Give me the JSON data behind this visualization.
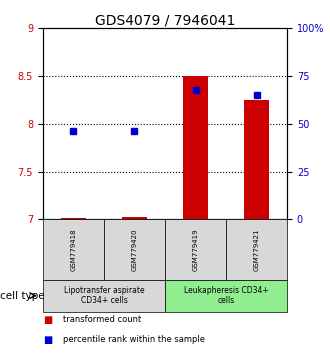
{
  "title": "GDS4079 / 7946041",
  "samples": [
    "GSM779418",
    "GSM779420",
    "GSM779419",
    "GSM779421"
  ],
  "red_values": [
    7.02,
    7.03,
    8.5,
    8.25
  ],
  "blue_values": [
    7.93,
    7.93,
    8.35,
    8.3
  ],
  "ylim_left": [
    7.0,
    9.0
  ],
  "ylim_right": [
    0,
    100
  ],
  "yticks_left": [
    7.0,
    7.5,
    8.0,
    8.5,
    9.0
  ],
  "ytick_labels_left": [
    "7",
    "7.5",
    "8",
    "8.5",
    "9"
  ],
  "yticks_right": [
    0,
    25,
    50,
    75,
    100
  ],
  "ytick_labels_right": [
    "0",
    "25",
    "50",
    "75",
    "100%"
  ],
  "grid_lines": [
    7.5,
    8.0,
    8.5
  ],
  "group1_label": "Lipotransfer aspirate\nCD34+ cells",
  "group2_label": "Leukapheresis CD34+\ncells",
  "group1_color": "#d8d8d8",
  "group2_color": "#90ee90",
  "cell_type_label": "cell type",
  "legend_red_label": "transformed count",
  "legend_blue_label": "percentile rank within the sample",
  "red_color": "#cc0000",
  "blue_color": "#0000cc",
  "bar_bottom": 7.0,
  "bar_width": 0.4,
  "title_fontsize": 10,
  "tick_fontsize": 7,
  "sample_fontsize": 5,
  "group_fontsize": 5.5,
  "legend_fontsize": 6,
  "cell_type_fontsize": 7.5
}
